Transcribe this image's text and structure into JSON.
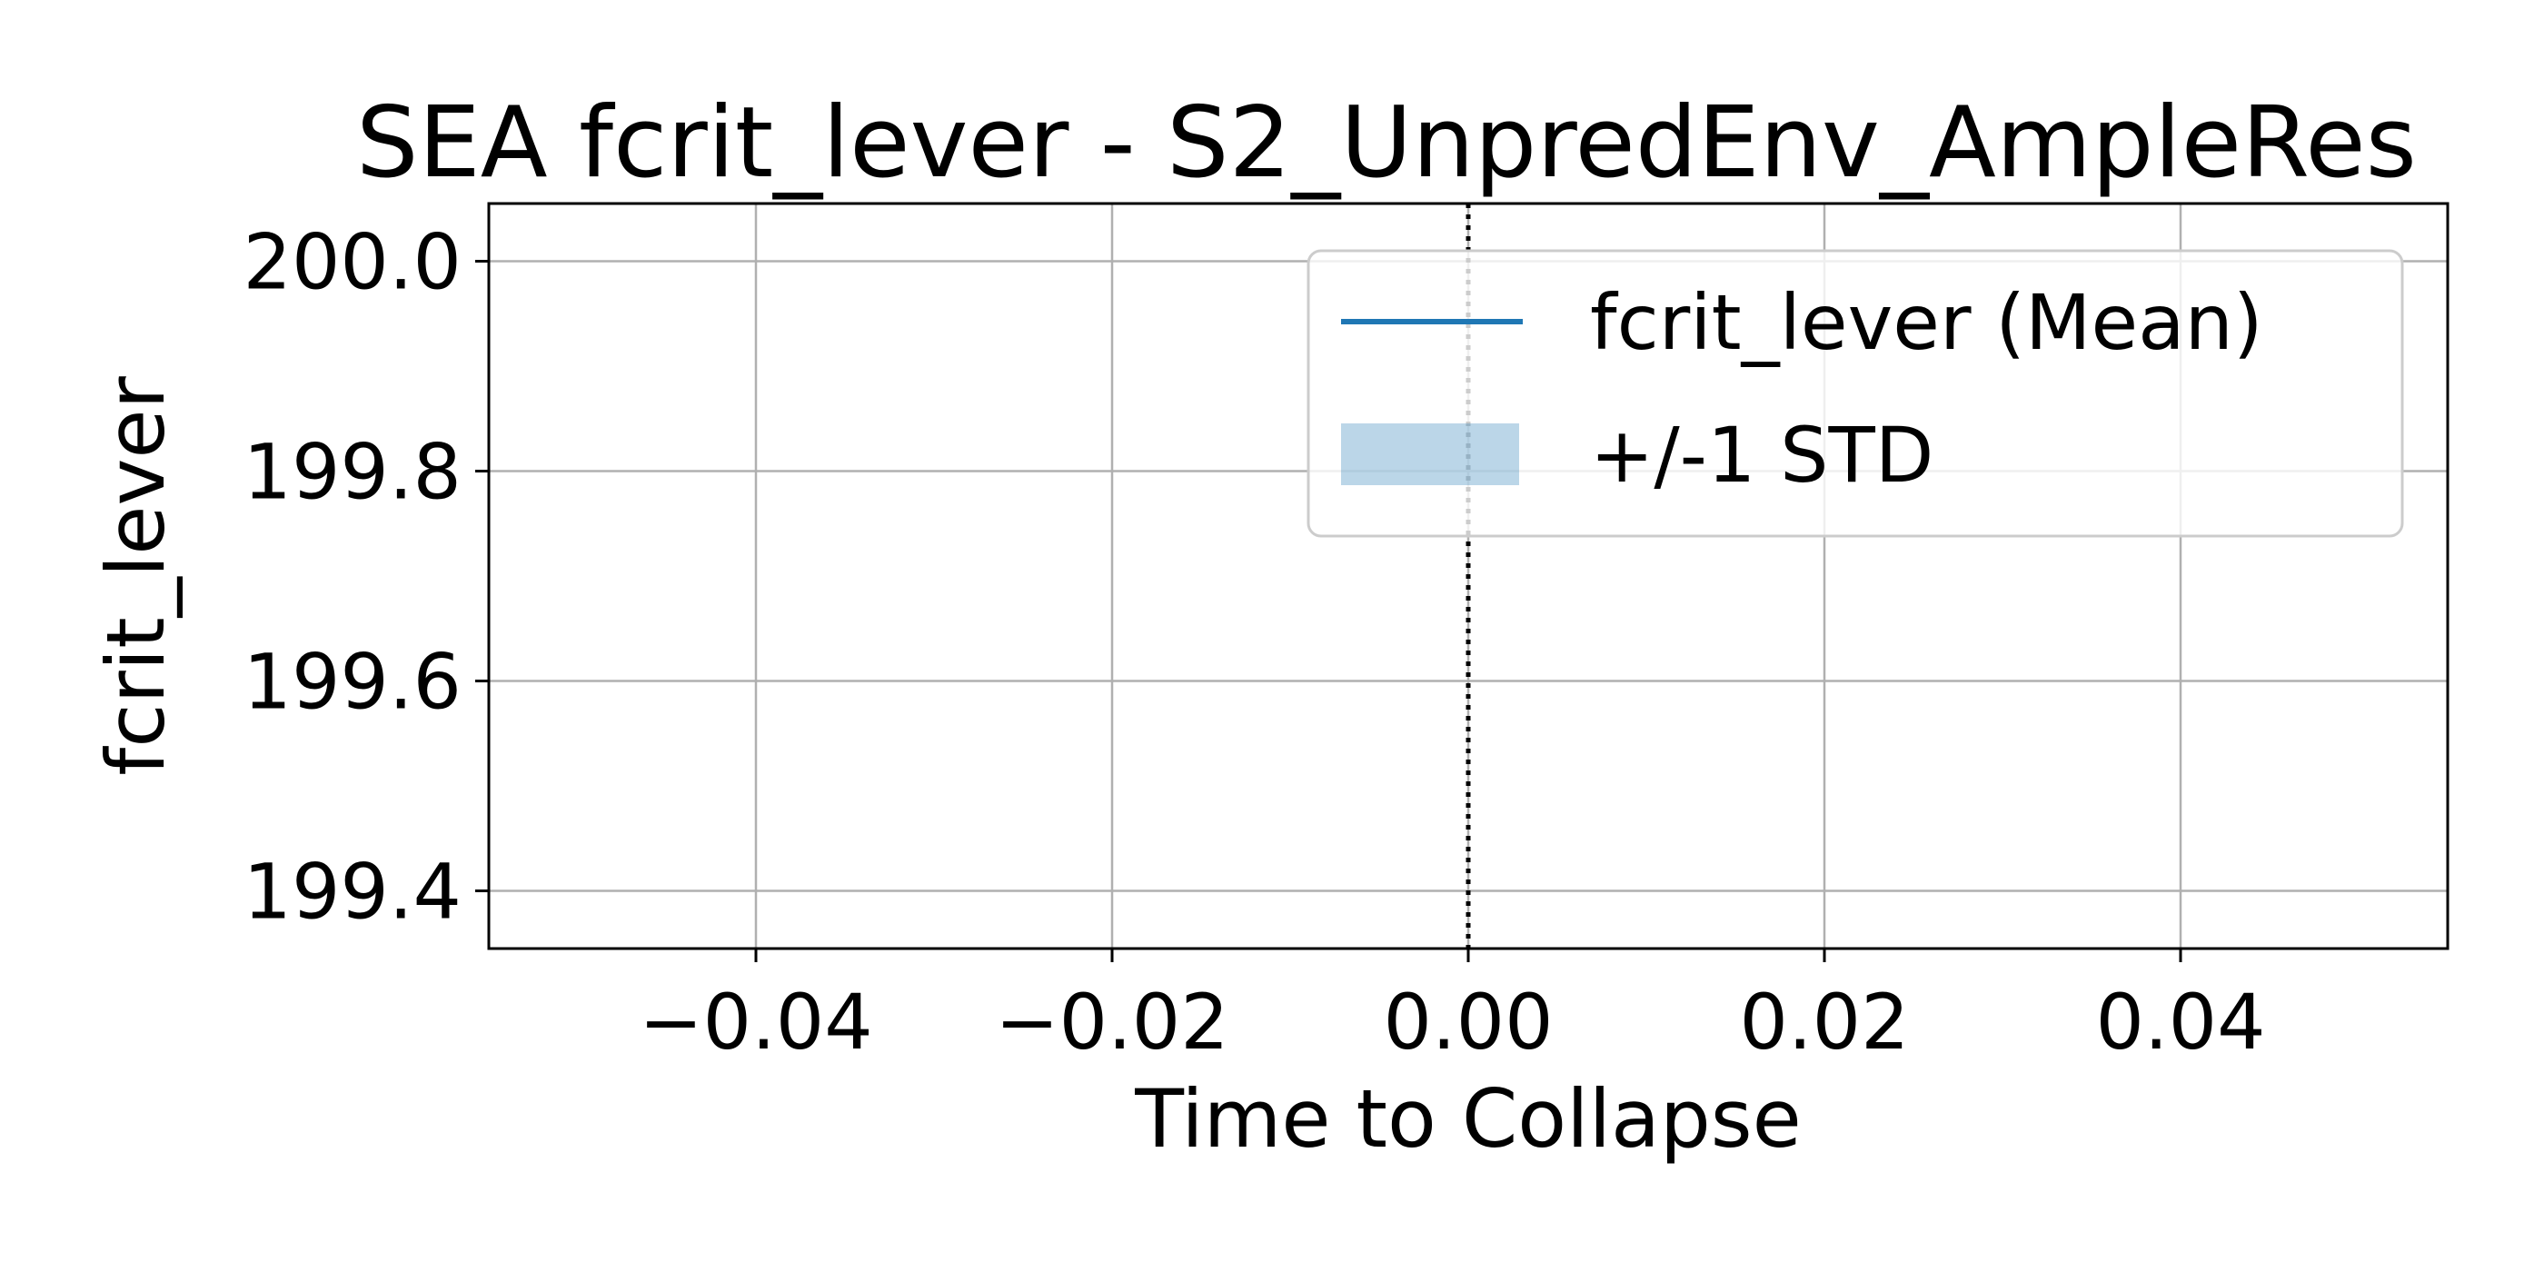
{
  "chart_data": {
    "type": "line",
    "title": "SEA fcrit_lever - S2_UnpredEnv_AmpleRes",
    "xlabel": "Time to Collapse",
    "ylabel": "fcrit_lever",
    "xlim": [
      -0.055,
      0.055
    ],
    "ylim": [
      199.345,
      200.055
    ],
    "x_ticks": [
      -0.04,
      -0.02,
      0.0,
      0.02,
      0.04
    ],
    "x_tick_labels": [
      "−0.04",
      "−0.02",
      "0.00",
      "0.02",
      "0.04"
    ],
    "y_ticks": [
      199.4,
      199.6,
      199.8,
      200.0
    ],
    "y_tick_labels": [
      "199.4",
      "199.6",
      "199.8",
      "200.0"
    ],
    "grid": true,
    "vline_x": 0.0,
    "legend_position": "top-right",
    "series": [
      {
        "name": "fcrit_lever (Mean)",
        "x": [],
        "values": [],
        "color": "#1f77b4"
      }
    ],
    "band": {
      "name": "+/-1 STD",
      "color": "#1f77b4",
      "opacity": 0.3
    }
  }
}
